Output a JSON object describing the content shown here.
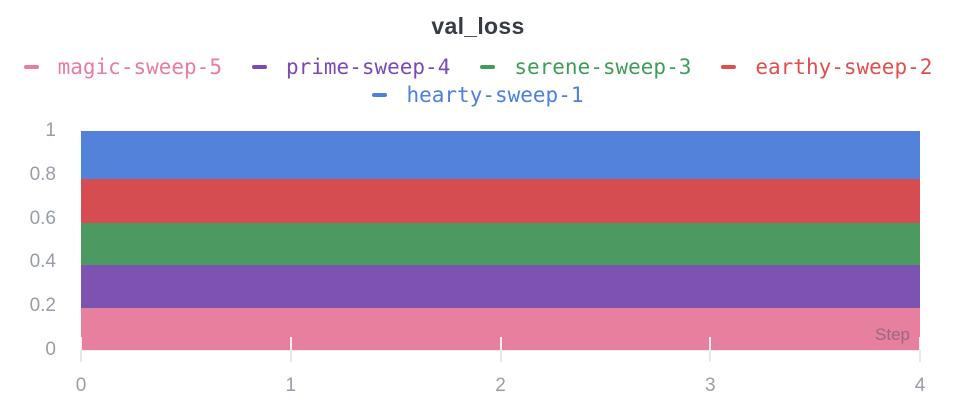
{
  "panel": {
    "title": "val_loss"
  },
  "legend": {
    "items": [
      {
        "label": "magic-sweep-5",
        "color": "#e87d9e"
      },
      {
        "label": "prime-sweep-4",
        "color": "#7b4ab8"
      },
      {
        "label": "serene-sweep-3",
        "color": "#3f9d58"
      },
      {
        "label": "earthy-sweep-2",
        "color": "#e14f4d"
      },
      {
        "label": "hearty-sweep-1",
        "color": "#4c80dc"
      }
    ]
  },
  "chart_data": {
    "type": "area",
    "title": "val_loss",
    "xlabel": "Step",
    "ylabel": "",
    "xlim": [
      0,
      4
    ],
    "ylim": [
      0,
      1
    ],
    "grid": false,
    "legend_position": "top",
    "x": [
      0,
      1,
      2,
      3,
      4
    ],
    "xticks": [
      {
        "value": 0,
        "label": "0"
      },
      {
        "value": 1,
        "label": "1"
      },
      {
        "value": 2,
        "label": "2"
      },
      {
        "value": 3,
        "label": "3"
      },
      {
        "value": 4,
        "label": "4"
      }
    ],
    "yticks": [
      {
        "value": 0,
        "label": "0"
      },
      {
        "value": 0.2,
        "label": "0.2"
      },
      {
        "value": 0.4,
        "label": "0.4"
      },
      {
        "value": 0.6,
        "label": "0.6"
      },
      {
        "value": 0.8,
        "label": "0.8"
      },
      {
        "value": 1,
        "label": "1"
      }
    ],
    "series": [
      {
        "name": "magic-sweep-5",
        "color": "#e77f9f",
        "band": {
          "from": 0,
          "to": 0.19
        },
        "values": [
          0.19,
          0.19,
          0.19,
          0.19,
          0.19
        ]
      },
      {
        "name": "prime-sweep-4",
        "color": "#7d53b1",
        "band": {
          "from": 0.19,
          "to": 0.39
        },
        "values": [
          0.39,
          0.39,
          0.39,
          0.39,
          0.39
        ]
      },
      {
        "name": "serene-sweep-3",
        "color": "#4c9a62",
        "band": {
          "from": 0.39,
          "to": 0.58
        },
        "values": [
          0.58,
          0.58,
          0.58,
          0.58,
          0.58
        ]
      },
      {
        "name": "earthy-sweep-2",
        "color": "#d64d51",
        "band": {
          "from": 0.58,
          "to": 0.78
        },
        "values": [
          0.78,
          0.78,
          0.78,
          0.78,
          0.78
        ]
      },
      {
        "name": "hearty-sweep-1",
        "color": "#5282da",
        "band": {
          "from": 0.78,
          "to": 1.0
        },
        "values": [
          1.0,
          1.0,
          1.0,
          1.0,
          1.0
        ]
      }
    ]
  },
  "colors": {
    "title": "#363c44",
    "axis_label": "#979ea8",
    "baseline": "#ededf2",
    "background": "#ffffff"
  }
}
